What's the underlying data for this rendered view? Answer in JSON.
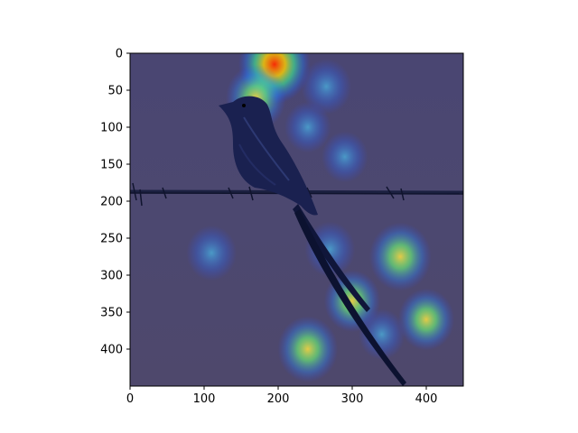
{
  "figure": {
    "x_ticks": [
      "0",
      "100",
      "200",
      "300",
      "400"
    ],
    "y_ticks": [
      "0",
      "50",
      "100",
      "150",
      "200",
      "250",
      "300",
      "350",
      "400"
    ],
    "x_tick_values": [
      0,
      100,
      200,
      300,
      400
    ],
    "y_tick_values": [
      0,
      50,
      100,
      150,
      200,
      250,
      300,
      350,
      400
    ],
    "x_range": [
      0,
      450
    ],
    "y_range": [
      0,
      450
    ],
    "y_inverted": true
  },
  "image": {
    "subject": "bird perched on barbed wire",
    "overlay": "jet colormap attention heatmap",
    "background_color": "#4a4570",
    "bird_color": "#1a2150",
    "wire_color": "#1b2040"
  },
  "heatmap_hotspots": [
    {
      "x": 195,
      "y": 15,
      "level": 1.0
    },
    {
      "x": 265,
      "y": 45,
      "level": 0.45
    },
    {
      "x": 170,
      "y": 60,
      "level": 0.7
    },
    {
      "x": 240,
      "y": 100,
      "level": 0.35
    },
    {
      "x": 290,
      "y": 140,
      "level": 0.35
    },
    {
      "x": 270,
      "y": 265,
      "level": 0.45
    },
    {
      "x": 365,
      "y": 275,
      "level": 0.75
    },
    {
      "x": 110,
      "y": 270,
      "level": 0.45
    },
    {
      "x": 300,
      "y": 335,
      "level": 0.6
    },
    {
      "x": 400,
      "y": 360,
      "level": 0.6
    },
    {
      "x": 240,
      "y": 400,
      "level": 0.7
    },
    {
      "x": 340,
      "y": 380,
      "level": 0.35
    }
  ]
}
